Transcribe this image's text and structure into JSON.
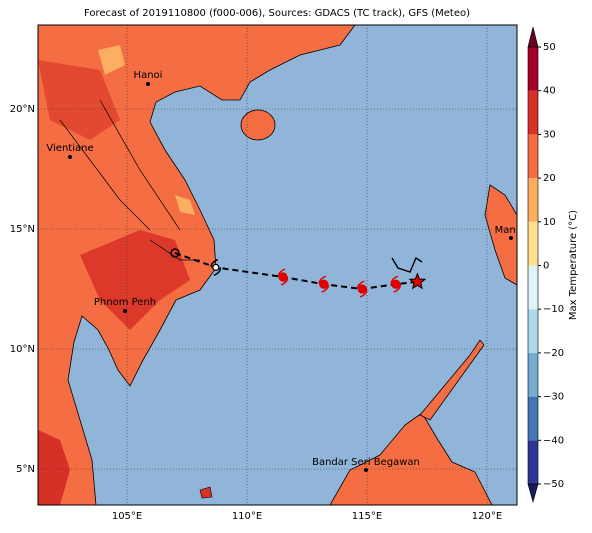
{
  "map": {
    "title": "Forecast of 2019110800 (f000-006), Sources: GDACS (TC track), GFS (Meteo)",
    "xlim": [
      101.29,
      121.25
    ],
    "ylim": [
      3.5,
      23.5
    ],
    "xticks": [
      {
        "value": 105,
        "label": "105°E"
      },
      {
        "value": 110,
        "label": "110°E"
      },
      {
        "value": 115,
        "label": "115°E"
      },
      {
        "value": 120,
        "label": "120°E"
      }
    ],
    "yticks": [
      {
        "value": 5,
        "label": "5°N"
      },
      {
        "value": 10,
        "label": "10°N"
      },
      {
        "value": 15,
        "label": "15°N"
      },
      {
        "value": 20,
        "label": "20°N"
      }
    ],
    "cities": [
      "Hanoi",
      "Vientiane",
      "Phnom Penh",
      "Manila",
      "Bandar Seri Begawan"
    ],
    "track": {
      "lon": [
        107.0,
        108.7,
        111.5,
        113.2,
        114.8,
        116.2,
        117.1
      ],
      "lat": [
        14.0,
        13.4,
        13.0,
        12.7,
        12.5,
        12.7,
        12.8
      ],
      "color": "#e00000"
    },
    "colorbar": {
      "label": "Max Temperature (°C)",
      "clim": [
        -50,
        50
      ],
      "ticks": [
        {
          "value": -50,
          "label": "−50"
        },
        {
          "value": -40,
          "label": "−40"
        },
        {
          "value": -30,
          "label": "−30"
        },
        {
          "value": -20,
          "label": "−20"
        },
        {
          "value": -10,
          "label": "−10"
        },
        0,
        10,
        20,
        30,
        40,
        50
      ],
      "colors": [
        "#313695",
        "#4575b4",
        "#74add1",
        "#abd9e9",
        "#e0f3f8",
        "#fee090",
        "#fdae61",
        "#f46d43",
        "#d73027",
        "#a50026"
      ],
      "under": "#1a1a5e",
      "over": "#6b0020"
    }
  }
}
